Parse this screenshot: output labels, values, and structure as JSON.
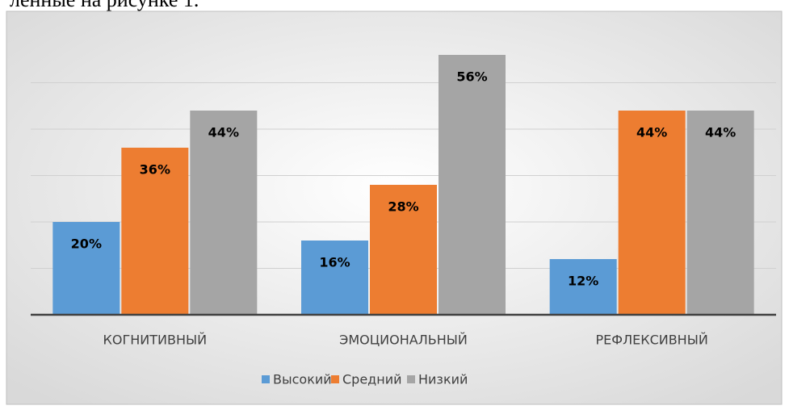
{
  "page_text": "ленные на рисунке 1.",
  "chart_data": {
    "type": "bar",
    "categories": [
      "КОГНИТИВНЫЙ",
      "ЭМОЦИОНАЛЬНЫЙ",
      "РЕФЛЕКСИВНЫЙ"
    ],
    "series": [
      {
        "name": "Высокий",
        "color": "#5b9bd5",
        "values": [
          20,
          16,
          12
        ],
        "value_labels": [
          "20%",
          "16%",
          "12%"
        ]
      },
      {
        "name": "Средний",
        "color": "#ed7d31",
        "values": [
          36,
          28,
          44
        ],
        "value_labels": [
          "36%",
          "28%",
          "44%"
        ]
      },
      {
        "name": "Низкий",
        "color": "#a5a5a5",
        "values": [
          44,
          56,
          44
        ],
        "value_labels": [
          "44%",
          "56%",
          "44%"
        ]
      }
    ],
    "ylim": [
      0,
      60
    ],
    "yticks": [
      0,
      10,
      20,
      30,
      40,
      50
    ],
    "grid": true,
    "legend": "bottom"
  }
}
